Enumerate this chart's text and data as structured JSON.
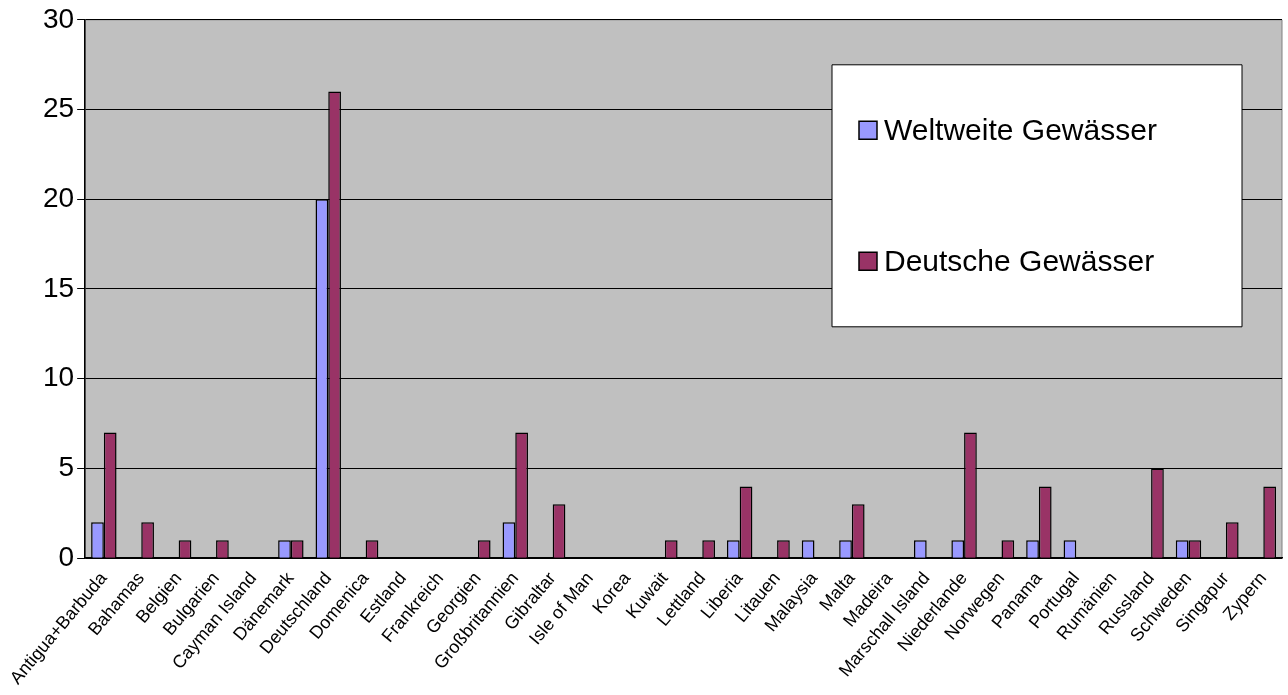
{
  "chart_data": {
    "type": "bar",
    "categories": [
      "Antigua+Barbuda",
      "Bahamas",
      "Belgien",
      "Bulgarien",
      "Cayman Island",
      "Dänemark",
      "Deutschland",
      "Domenica",
      "Estland",
      "Frankreich",
      "Georgien",
      "Großbritannien",
      "Gibraltar",
      "Isle of Man",
      "Korea",
      "Kuwait",
      "Lettland",
      "Liberia",
      "Litauen",
      "Malaysia",
      "Malta",
      "Madeira",
      "Marschall Island",
      "Niederlande",
      "Norwegen",
      "Panama",
      "Portugal",
      "Rumänien",
      "Russland",
      "Schweden",
      "Singapur",
      "Zypern"
    ],
    "series": [
      {
        "name": "Weltweite Gewässer",
        "color": "#9999ff",
        "values": [
          2,
          0,
          0,
          0,
          0,
          1,
          20,
          0,
          0,
          0,
          0,
          2,
          0,
          0,
          0,
          0,
          0,
          1,
          0,
          1,
          1,
          0,
          1,
          1,
          0,
          1,
          1,
          0,
          0,
          1,
          0,
          0
        ]
      },
      {
        "name": "Deutsche Gewässer",
        "color": "#993366",
        "values": [
          7,
          2,
          1,
          1,
          0,
          1,
          26,
          1,
          0,
          0,
          1,
          7,
          3,
          0,
          0,
          1,
          1,
          4,
          1,
          0,
          3,
          0,
          0,
          7,
          1,
          4,
          0,
          0,
          5,
          1,
          2,
          4
        ]
      }
    ],
    "ylim": [
      0,
      30
    ],
    "yticks": [
      0,
      5,
      10,
      15,
      20,
      25,
      30
    ],
    "grid": "y",
    "legend": "top right"
  }
}
